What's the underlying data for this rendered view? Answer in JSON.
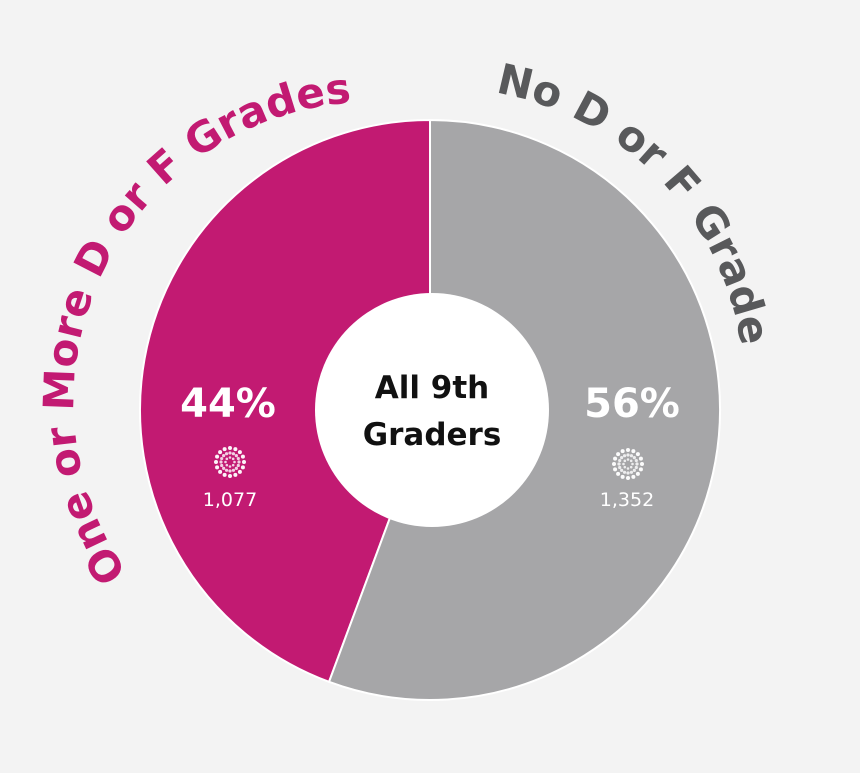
{
  "chart_data": {
    "type": "pie",
    "center_label": [
      "All 9th",
      "Graders"
    ],
    "slices": [
      {
        "label": "One or More D or F Grades",
        "percent_label": "44%",
        "count_label": "1,077",
        "value": 1077,
        "color": "#c21a72"
      },
      {
        "label": "No D or F Grades",
        "percent_label": "56%",
        "count_label": "1,352",
        "value": 1352,
        "color": "#a6a6a8"
      }
    ],
    "legend": "none",
    "grid": false
  },
  "icons": {
    "count_icon": "starburst-people-icon"
  },
  "colors": {
    "background": "#f3f3f3",
    "center_fill": "#ffffff",
    "slice_border": "#ffffff",
    "label_gray": "#58595b"
  }
}
